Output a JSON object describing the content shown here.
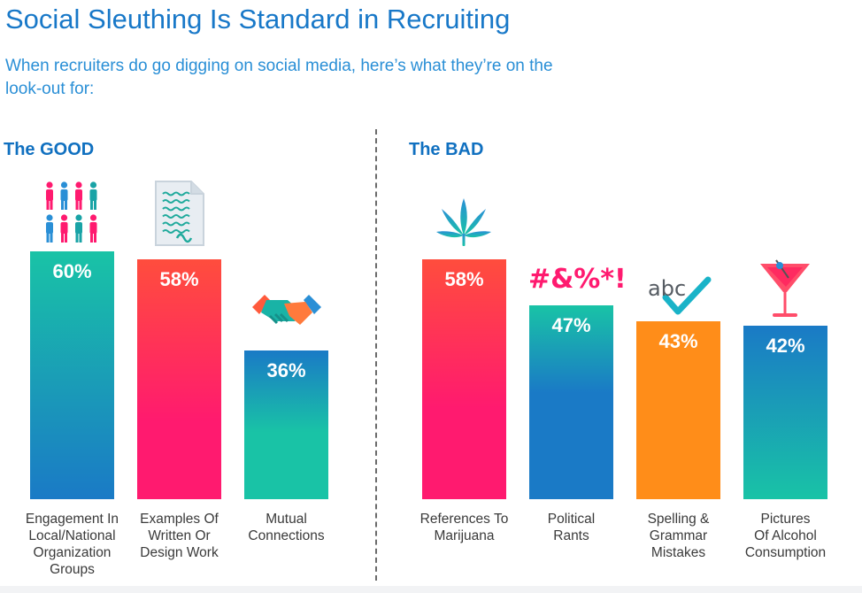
{
  "title": "Social Sleuthing Is Standard in Recruiting",
  "subtitle": "When recruiters do go digging on social media, here’s what they’re on the look-out for:",
  "groups": {
    "good": {
      "heading": "The GOOD"
    },
    "bad": {
      "heading": "The BAD"
    }
  },
  "colors": {
    "title": "#1878c8",
    "teal": "#19c3a6",
    "blue": "#1a7ac6",
    "red": "#ff4d3d",
    "pink": "#ff1a6f",
    "orange": "#ff8d19"
  },
  "chart_data": {
    "type": "bar",
    "ylim": [
      0,
      60
    ],
    "categories": [
      "Engagement In Local/National Organization Groups",
      "Examples Of Written Or Design Work",
      "Mutual Connections",
      "References To Marijuana",
      "Political Rants",
      "Spelling & Grammar Mistakes",
      "Pictures Of Alcohol Consumption"
    ],
    "groups": [
      "The GOOD",
      "The GOOD",
      "The GOOD",
      "The BAD",
      "The BAD",
      "The BAD",
      "The BAD"
    ],
    "values": [
      60,
      58,
      36,
      58,
      47,
      43,
      42
    ],
    "value_labels": [
      "60%",
      "58%",
      "36%",
      "58%",
      "47%",
      "43%",
      "42%"
    ],
    "label_lines": [
      [
        "Engagement In",
        "Local/National",
        "Organization",
        "Groups"
      ],
      [
        "Examples Of",
        "Written Or",
        "Design Work"
      ],
      [
        "Mutual",
        "Connections"
      ],
      [
        "References To",
        "Marijuana"
      ],
      [
        "Political",
        "Rants"
      ],
      [
        "Spelling &",
        "Grammar",
        "Mistakes"
      ],
      [
        "Pictures",
        "Of Alcohol",
        "Consumption"
      ]
    ],
    "icons": [
      "people-icon",
      "document-icon",
      "handshake-icon",
      "cannabis-leaf-icon",
      "symbols-icon",
      "spellcheck-icon",
      "cocktail-icon"
    ],
    "icon_texts": [
      "",
      "",
      "",
      "",
      "#&%*!",
      "abc",
      ""
    ]
  }
}
